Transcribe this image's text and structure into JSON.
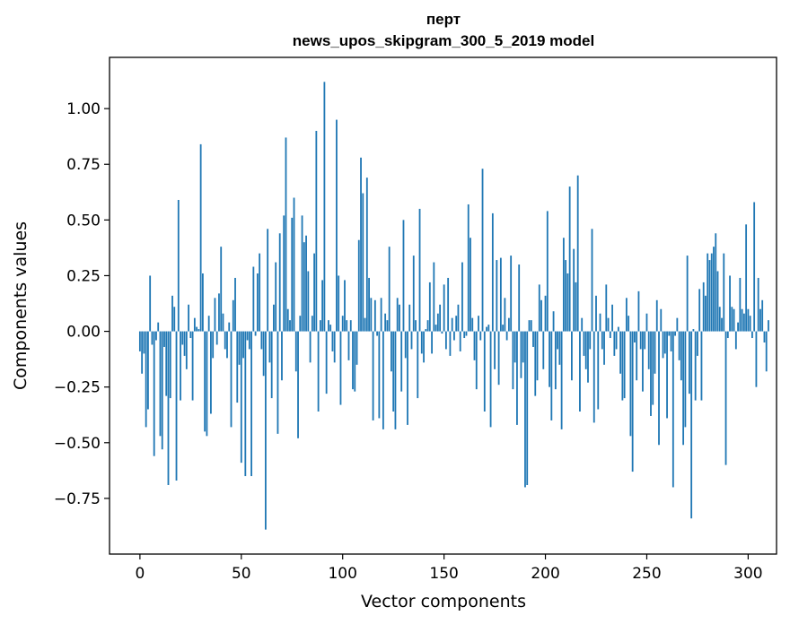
{
  "chart_data": {
    "type": "bar",
    "title_lines": [
      "перт",
      "news_upos_skipgram_300_5_2019 model"
    ],
    "xlabel": "Vector components",
    "ylabel": "Components values",
    "xlim": [
      -15,
      314
    ],
    "ylim": [
      -1.0,
      1.23
    ],
    "x_ticks": [
      0,
      50,
      100,
      150,
      200,
      250,
      300
    ],
    "x_tick_labels": [
      "0",
      "50",
      "100",
      "150",
      "200",
      "250",
      "300"
    ],
    "y_ticks": [
      -0.75,
      -0.5,
      -0.25,
      0.0,
      0.25,
      0.5,
      0.75,
      1.0
    ],
    "y_tick_labels": [
      "−0.75",
      "−0.50",
      "−0.25",
      "0.00",
      "0.25",
      "0.50",
      "0.75",
      "1.00"
    ],
    "grid": false,
    "bar_color": "#1f77b4",
    "values": [
      -0.09,
      -0.19,
      -0.1,
      -0.43,
      -0.35,
      0.25,
      -0.06,
      -0.56,
      -0.04,
      0.04,
      -0.47,
      -0.53,
      -0.07,
      -0.29,
      -0.69,
      -0.3,
      0.16,
      0.11,
      -0.67,
      0.59,
      -0.31,
      -0.06,
      -0.11,
      -0.17,
      0.12,
      -0.03,
      -0.31,
      0.06,
      0.02,
      0.01,
      0.84,
      0.26,
      -0.45,
      -0.47,
      0.07,
      -0.37,
      -0.12,
      0.15,
      -0.06,
      0.17,
      0.38,
      0.08,
      -0.08,
      -0.12,
      0.04,
      -0.43,
      0.14,
      0.24,
      -0.32,
      -0.15,
      -0.59,
      -0.12,
      -0.65,
      -0.04,
      -0.08,
      -0.65,
      0.29,
      -0.02,
      0.26,
      0.35,
      -0.08,
      -0.2,
      -0.89,
      0.46,
      -0.14,
      -0.3,
      0.12,
      0.31,
      -0.46,
      0.44,
      -0.22,
      0.52,
      0.87,
      0.1,
      0.05,
      0.51,
      0.6,
      -0.18,
      -0.48,
      0.07,
      0.52,
      0.4,
      0.43,
      0.27,
      -0.14,
      0.07,
      0.35,
      0.9,
      -0.36,
      0.05,
      0.23,
      1.12,
      -0.28,
      0.05,
      0.03,
      -0.09,
      -0.14,
      0.95,
      0.25,
      -0.33,
      0.07,
      0.23,
      0.05,
      -0.13,
      0.05,
      -0.26,
      -0.27,
      -0.15,
      0.41,
      0.78,
      0.62,
      0.06,
      0.69,
      0.24,
      0.15,
      -0.4,
      0.14,
      -0.02,
      -0.39,
      0.15,
      -0.44,
      0.08,
      0.05,
      0.38,
      -0.18,
      -0.36,
      -0.44,
      0.15,
      0.12,
      -0.27,
      0.5,
      -0.12,
      -0.42,
      0.12,
      -0.08,
      0.34,
      0.05,
      -0.3,
      0.55,
      -0.1,
      -0.14,
      0.01,
      0.05,
      0.22,
      -0.1,
      0.31,
      0.03,
      0.08,
      0.12,
      -0.01,
      0.21,
      -0.08,
      0.24,
      -0.11,
      0.06,
      -0.04,
      0.07,
      0.12,
      -0.09,
      0.31,
      -0.03,
      -0.02,
      0.57,
      0.42,
      0.06,
      -0.13,
      -0.26,
      0.07,
      -0.04,
      0.73,
      -0.36,
      0.02,
      0.03,
      -0.43,
      0.53,
      -0.17,
      0.32,
      -0.24,
      0.33,
      0.03,
      0.15,
      -0.04,
      0.06,
      0.34,
      -0.26,
      -0.14,
      -0.42,
      0.3,
      -0.21,
      -0.14,
      -0.7,
      -0.69,
      0.05,
      0.05,
      -0.07,
      -0.29,
      -0.22,
      0.21,
      0.14,
      -0.17,
      0.16,
      0.54,
      -0.25,
      -0.4,
      0.09,
      -0.26,
      -0.08,
      -0.15,
      -0.44,
      0.42,
      0.32,
      0.26,
      0.65,
      -0.22,
      0.37,
      0.22,
      0.7,
      -0.36,
      0.06,
      -0.11,
      -0.17,
      -0.23,
      -0.08,
      0.46,
      -0.41,
      0.16,
      -0.35,
      0.08,
      -0.08,
      -0.15,
      0.21,
      0.06,
      -0.03,
      0.12,
      -0.11,
      -0.08,
      0.02,
      -0.19,
      -0.31,
      -0.3,
      0.15,
      0.07,
      -0.47,
      -0.63,
      -0.05,
      -0.22,
      0.18,
      -0.08,
      -0.27,
      -0.08,
      0.08,
      -0.17,
      -0.38,
      -0.33,
      -0.19,
      0.14,
      -0.51,
      0.1,
      -0.12,
      -0.1,
      -0.39,
      -0.02,
      -0.09,
      -0.7,
      -0.02,
      0.06,
      -0.13,
      -0.22,
      -0.51,
      -0.43,
      0.34,
      -0.28,
      -0.84,
      0.01,
      -0.31,
      -0.11,
      0.19,
      -0.31,
      0.22,
      0.16,
      0.35,
      0.32,
      0.35,
      0.38,
      0.44,
      0.27,
      0.11,
      0.06,
      0.35,
      -0.6,
      -0.03,
      0.25,
      0.11,
      0.1,
      -0.08,
      0.04,
      0.24,
      0.1,
      0.08,
      0.48,
      0.1,
      0.07,
      -0.03,
      0.58,
      -0.25,
      0.24,
      0.1,
      0.14,
      -0.05,
      -0.18,
      0.05
    ]
  }
}
